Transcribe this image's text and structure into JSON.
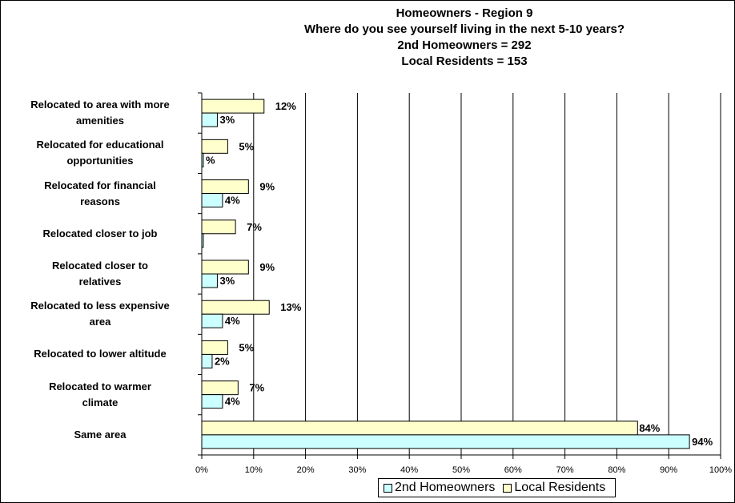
{
  "chart_data": {
    "type": "bar",
    "orientation": "horizontal",
    "title": [
      "Homeowners - Region 9",
      "Where do you see yourself living in the next 5-10 years?",
      "2nd Homeowners  = 292",
      "Local Residents =  153"
    ],
    "categories": [
      [
        "Relocated to area with more",
        "amenities"
      ],
      [
        "Relocated for educational",
        "opportunities"
      ],
      [
        "Relocated for financial",
        "reasons"
      ],
      [
        "Relocated closer to job"
      ],
      [
        "Relocated closer to",
        "relatives"
      ],
      [
        "Relocated to less expensive",
        "area"
      ],
      [
        "Relocated to lower altitude"
      ],
      [
        "Relocated to warmer",
        "climate"
      ],
      [
        "Same area"
      ]
    ],
    "series": [
      {
        "name": "Local Residents",
        "color": "#FFFFCC",
        "values": [
          12,
          5,
          9,
          6.5,
          9,
          13,
          5,
          7,
          84
        ],
        "labels": [
          "12%",
          "5%",
          "9%",
          "7%",
          "9%",
          "13%",
          "5%",
          "7%",
          "84%"
        ]
      },
      {
        "name": "2nd Homeowners",
        "color": "#CCFFFF",
        "values": [
          3,
          0.3,
          4,
          0.3,
          3,
          4,
          2,
          4,
          94
        ],
        "labels": [
          "3%",
          "%",
          "4%",
          "",
          "3%",
          "4%",
          "2%",
          "4%",
          "94%"
        ]
      }
    ],
    "xlim": [
      0,
      100
    ],
    "xticks": [
      "0%",
      "10%",
      "20%",
      "30%",
      "40%",
      "50%",
      "60%",
      "70%",
      "80%",
      "90%",
      "100%"
    ],
    "xgrid": true,
    "legend": {
      "position": "bottom",
      "entries": [
        "2nd Homeowners",
        "Local Residents"
      ]
    }
  }
}
